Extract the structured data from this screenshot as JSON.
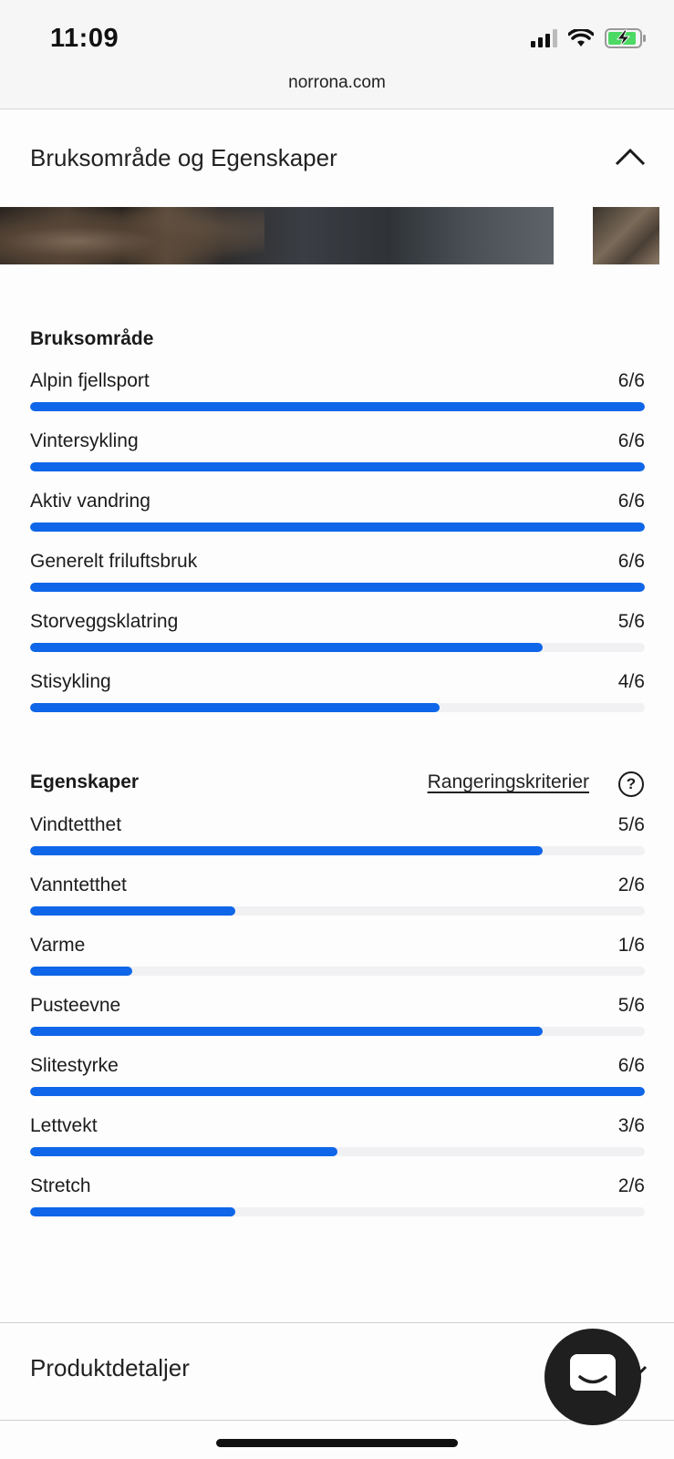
{
  "status_bar": {
    "time": "11:09",
    "url": "norrona.com"
  },
  "section": {
    "title": "Bruksområde og Egenskaper"
  },
  "usage": {
    "title": "Bruksområde",
    "items": [
      {
        "label": "Alpin fjellsport",
        "score": 6,
        "display": "6/6"
      },
      {
        "label": "Vintersykling",
        "score": 6,
        "display": "6/6"
      },
      {
        "label": "Aktiv vandring",
        "score": 6,
        "display": "6/6"
      },
      {
        "label": "Generelt friluftsbruk",
        "score": 6,
        "display": "6/6"
      },
      {
        "label": "Storveggsklatring",
        "score": 5,
        "display": "5/6"
      },
      {
        "label": "Stisykling",
        "score": 4,
        "display": "4/6"
      }
    ]
  },
  "properties": {
    "title": "Egenskaper",
    "criteria_link": "Rangeringskriterier",
    "help_glyph": "?",
    "items": [
      {
        "label": "Vindtetthet",
        "score": 5,
        "display": "5/6"
      },
      {
        "label": "Vanntetthet",
        "score": 2,
        "display": "2/6"
      },
      {
        "label": "Varme",
        "score": 1,
        "display": "1/6"
      },
      {
        "label": "Pusteevne",
        "score": 5,
        "display": "5/6"
      },
      {
        "label": "Slitestyrke",
        "score": 6,
        "display": "6/6"
      },
      {
        "label": "Lettvekt",
        "score": 3,
        "display": "3/6"
      },
      {
        "label": "Stretch",
        "score": 2,
        "display": "2/6"
      }
    ]
  },
  "max_score": 6,
  "product_details": {
    "title": "Produktdetaljer"
  },
  "colors": {
    "accent": "#0f66e8",
    "track": "#f1f1f3"
  }
}
